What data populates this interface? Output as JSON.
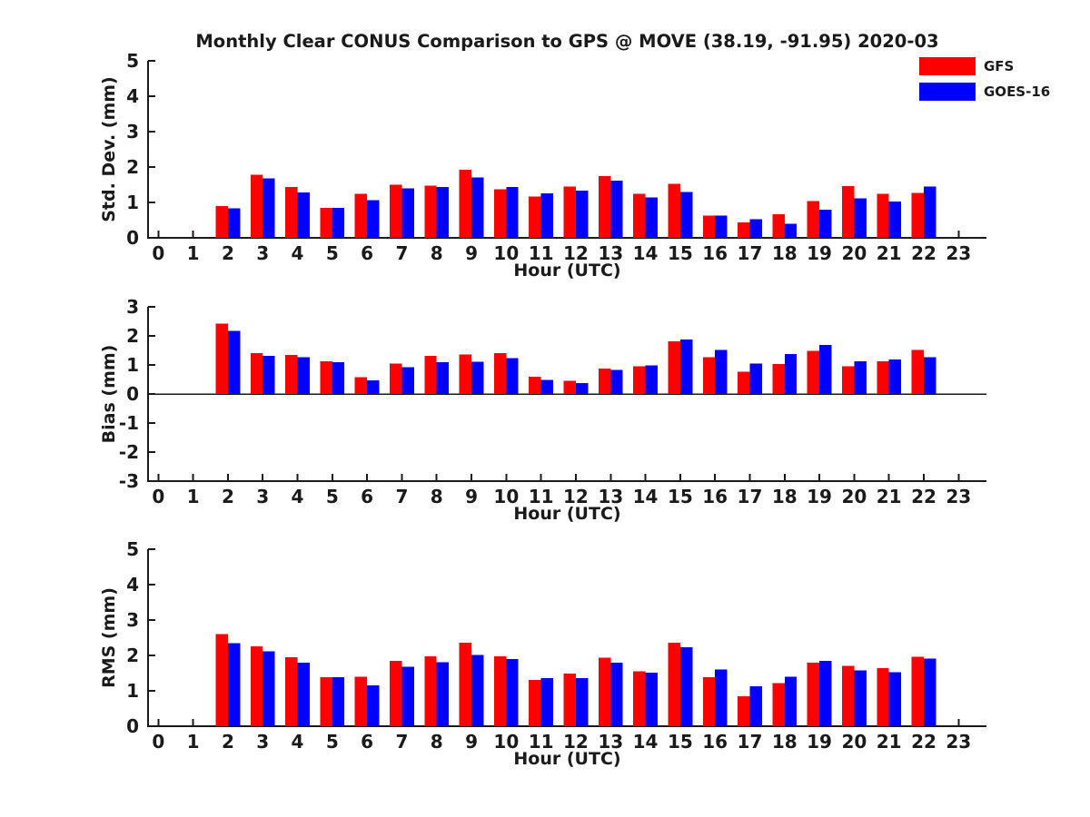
{
  "title": "Monthly Clear CONUS Comparison to GPS @ MOVE (38.19, -91.95) 2020-03",
  "legend": [
    {
      "label": "GFS",
      "color": "#ff0000"
    },
    {
      "label": "GOES-16",
      "color": "#0000ff"
    }
  ],
  "colors": {
    "gfs": "#ff0000",
    "goes16": "#0000ff",
    "axis": "#1a1a1a",
    "text": "#1a1a1a",
    "background": "#ffffff"
  },
  "chart_data": [
    {
      "type": "bar",
      "name": "std-dev",
      "ylabel": "Std. Dev. (mm)",
      "xlabel": "Hour (UTC)",
      "ylim": [
        0,
        5
      ],
      "yticks": [
        0,
        1,
        2,
        3,
        4,
        5
      ],
      "categories": [
        0,
        1,
        2,
        3,
        4,
        5,
        6,
        7,
        8,
        9,
        10,
        11,
        12,
        13,
        14,
        15,
        16,
        17,
        18,
        19,
        20,
        21,
        22,
        23
      ],
      "legend_position": "outside-top-right",
      "grid": false,
      "series": [
        {
          "name": "GFS",
          "color": "#ff0000",
          "values": [
            null,
            null,
            0.9,
            1.78,
            1.44,
            0.84,
            1.24,
            1.5,
            1.48,
            1.92,
            1.37,
            1.17,
            1.45,
            1.74,
            1.24,
            1.53,
            0.63,
            0.43,
            0.67,
            1.04,
            1.46,
            1.24,
            1.27,
            null
          ]
        },
        {
          "name": "GOES-16",
          "color": "#0000ff",
          "values": [
            null,
            null,
            0.83,
            1.68,
            1.28,
            0.84,
            1.07,
            1.4,
            1.43,
            1.7,
            1.43,
            1.26,
            1.33,
            1.62,
            1.14,
            1.3,
            0.63,
            0.53,
            0.4,
            0.8,
            1.12,
            1.02,
            1.45,
            null
          ]
        }
      ]
    },
    {
      "type": "bar",
      "name": "bias",
      "ylabel": "Bias (mm)",
      "xlabel": "Hour (UTC)",
      "ylim": [
        -3,
        3
      ],
      "yticks": [
        -3,
        -2,
        -1,
        0,
        1,
        2,
        3
      ],
      "categories": [
        0,
        1,
        2,
        3,
        4,
        5,
        6,
        7,
        8,
        9,
        10,
        11,
        12,
        13,
        14,
        15,
        16,
        17,
        18,
        19,
        20,
        21,
        22,
        23
      ],
      "zero_line": true,
      "grid": false,
      "series": [
        {
          "name": "GFS",
          "color": "#ff0000",
          "values": [
            null,
            null,
            2.42,
            1.4,
            1.34,
            1.12,
            0.58,
            1.05,
            1.32,
            1.36,
            1.41,
            0.6,
            0.46,
            0.88,
            0.95,
            1.82,
            1.26,
            0.76,
            1.03,
            1.48,
            0.95,
            1.13,
            1.51,
            null
          ]
        },
        {
          "name": "GOES-16",
          "color": "#0000ff",
          "values": [
            null,
            null,
            2.17,
            1.32,
            1.27,
            1.09,
            0.47,
            0.92,
            1.1,
            1.11,
            1.23,
            0.49,
            0.38,
            0.83,
            0.99,
            1.87,
            1.52,
            1.05,
            1.38,
            1.69,
            1.13,
            1.18,
            1.26,
            null
          ]
        }
      ]
    },
    {
      "type": "bar",
      "name": "rms",
      "ylabel": "RMS (mm)",
      "xlabel": "Hour (UTC)",
      "ylim": [
        0,
        5
      ],
      "yticks": [
        0,
        1,
        2,
        3,
        4,
        5
      ],
      "categories": [
        0,
        1,
        2,
        3,
        4,
        5,
        6,
        7,
        8,
        9,
        10,
        11,
        12,
        13,
        14,
        15,
        16,
        17,
        18,
        19,
        20,
        21,
        22,
        23
      ],
      "grid": false,
      "series": [
        {
          "name": "GFS",
          "color": "#ff0000",
          "values": [
            null,
            null,
            2.6,
            2.26,
            1.95,
            1.38,
            1.4,
            1.84,
            1.97,
            2.36,
            1.97,
            1.31,
            1.49,
            1.94,
            1.55,
            2.36,
            1.38,
            0.85,
            1.22,
            1.79,
            1.7,
            1.64,
            1.96,
            null
          ]
        },
        {
          "name": "GOES-16",
          "color": "#0000ff",
          "values": [
            null,
            null,
            2.34,
            2.12,
            1.79,
            1.38,
            1.16,
            1.68,
            1.81,
            2.01,
            1.9,
            1.36,
            1.36,
            1.8,
            1.51,
            2.23,
            1.6,
            1.13,
            1.4,
            1.84,
            1.58,
            1.52,
            1.91,
            null
          ]
        }
      ]
    }
  ]
}
